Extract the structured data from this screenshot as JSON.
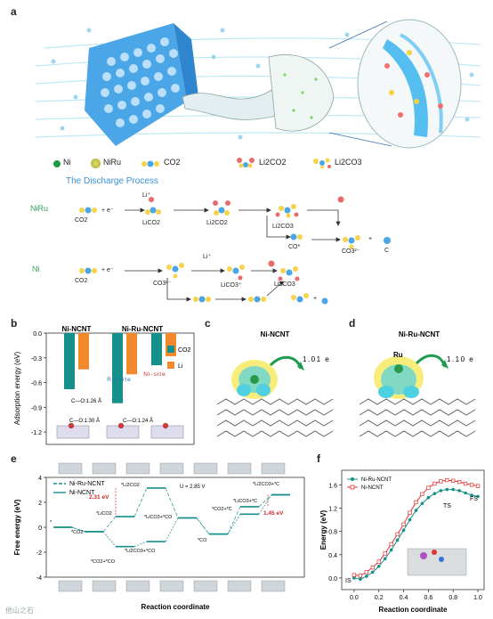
{
  "panel_a": {
    "letter": "a",
    "legend": [
      {
        "label": "Ni",
        "icon": "green-sphere-icon"
      },
      {
        "label": "NiRu",
        "icon": "yellow-cluster-icon"
      },
      {
        "label": "CO2",
        "icon": "co2-molecule-icon"
      },
      {
        "label": "Li2CO2",
        "icon": "li2co2-molecule-icon"
      },
      {
        "label": "Li2CO3",
        "icon": "li2co3-molecule-icon"
      }
    ],
    "process_title": "The Discharge Process",
    "niru": {
      "label": "NiRu",
      "co2": "CO2",
      "plus_e": "+ e⁻",
      "li_plus": "Li⁺",
      "lico2": "LiCO2",
      "li2co2": "Li2CO2",
      "li2co3": "Li2CO3",
      "co_star": "CO*",
      "co3": "CO3²⁻",
      "plus": "+",
      "c": "C"
    },
    "ni": {
      "label": "Ni",
      "co2": "CO2",
      "plus_e": "+ e⁻",
      "li_plus": "Li⁺",
      "co3": "CO3²⁻",
      "lico3": "LiCO3⁺",
      "li2co3": "Li2CO3",
      "plus": "+"
    }
  },
  "panel_b": {
    "letter": "b",
    "ylabel": "Adsorption energy (eV)",
    "groups": [
      "Ni-NCNT",
      "Ni-Ru-NCNT"
    ],
    "site_labels": [
      "Ru-site",
      "Ni-site"
    ],
    "bond_labels": [
      "C—O:1.26 Å",
      "C—O:1.30 Å",
      "C—O:1.24 Å"
    ],
    "colors": {
      "co2": "#16908a",
      "li": "#f08a2c"
    }
  },
  "panel_c": {
    "letter": "c",
    "title": "Ni-NCNT",
    "charge": "1.01 e"
  },
  "panel_d": {
    "letter": "d",
    "title": "Ni-Ru-NCNT",
    "site": "Ru",
    "charge": "1.10 e"
  },
  "panel_e": {
    "letter": "e",
    "annotations": {
      "u": "U = 2.85 V",
      "barrier1": "2.31 eV",
      "barrier2": "1.45 eV"
    },
    "state_labels": [
      "*",
      "*CO2",
      "*LiCO2",
      "*Li2CO2",
      "*CO2+*CO",
      "*Li2CO3+*CO",
      "*LiCO3+*CO",
      "*CO",
      "*CO2+*C",
      "*LiCO3+*C",
      "*Li2CO3+*C"
    ]
  },
  "panel_f": {
    "letter": "f",
    "annotations": {
      "is": "IS",
      "ts": "TS",
      "fs": "FS"
    }
  },
  "watermark": "他山之石",
  "chart_data": [
    {
      "type": "bar",
      "panel": "b",
      "categories": [
        "Ni-NCNT",
        "Ni-Ru-NCNT (Ru-site)",
        "Ni-Ru-NCNT (Ni-site)"
      ],
      "series": [
        {
          "name": "CO2",
          "values": [
            -0.68,
            -0.85,
            -0.39
          ]
        },
        {
          "name": "Li",
          "values": [
            -0.44,
            -0.5,
            -0.28
          ]
        }
      ],
      "xlabel": "",
      "ylabel": "Adsorption energy (eV)",
      "ylim": [
        -1.35,
        0
      ],
      "yticks": [
        0.0,
        -0.3,
        -0.6,
        -0.9,
        -1.2
      ],
      "ytick_labels": [
        "0.0",
        "-0.3",
        "-0.6",
        "-0.9",
        "-1.2"
      ],
      "legend_position": "right"
    },
    {
      "type": "line",
      "panel": "e",
      "x": [
        0,
        1,
        2,
        3,
        4,
        5,
        6,
        7
      ],
      "series": [
        {
          "name": "Ni-Ru-NCNT",
          "color": "#16908a",
          "values": [
            0.0,
            -0.35,
            0.85,
            3.15,
            0.75,
            -0.55,
            1.65,
            2.6
          ]
        },
        {
          "name": "Ni-NCNT",
          "color": "#16908a",
          "values": [
            0.0,
            -0.35,
            -1.55,
            -1.15,
            0.75,
            -0.55,
            1.05,
            2.6
          ]
        }
      ],
      "xlabel": "Reaction coordinate",
      "ylabel": "Free energy (eV)",
      "ylim": [
        -4,
        4
      ],
      "yticks": [
        -4,
        -2,
        0,
        2,
        4
      ],
      "legend_position": "top-left"
    },
    {
      "type": "line",
      "panel": "f",
      "x": [
        0.0,
        0.05,
        0.1,
        0.15,
        0.2,
        0.25,
        0.3,
        0.35,
        0.4,
        0.45,
        0.5,
        0.55,
        0.6,
        0.65,
        0.7,
        0.75,
        0.8,
        0.85,
        0.9,
        0.95,
        1.0
      ],
      "series": [
        {
          "name": "Ni-Ru-NCNT",
          "color": "#16908a",
          "values": [
            0.0,
            -0.02,
            0.03,
            0.1,
            0.2,
            0.33,
            0.48,
            0.65,
            0.82,
            1.0,
            1.16,
            1.28,
            1.38,
            1.45,
            1.5,
            1.52,
            1.52,
            1.5,
            1.46,
            1.42,
            1.4
          ]
        },
        {
          "name": "Ni-NCNT",
          "color": "#e03030",
          "values": [
            0.05,
            0.04,
            0.1,
            0.18,
            0.28,
            0.42,
            0.58,
            0.75,
            0.92,
            1.12,
            1.3,
            1.44,
            1.55,
            1.62,
            1.66,
            1.68,
            1.67,
            1.65,
            1.62,
            1.6,
            1.58
          ]
        }
      ],
      "xlabel": "Reaction coordinate",
      "ylabel": "Energy (eV)",
      "xlim": [
        -0.1,
        1.05
      ],
      "ylim": [
        -0.2,
        1.85
      ],
      "xticks": [
        0.0,
        0.2,
        0.4,
        0.6,
        0.8,
        1.0
      ],
      "xtick_labels": [
        "0.0",
        "0.2",
        "0.4",
        "0.6",
        "0.8",
        "1.0"
      ],
      "yticks": [
        0.0,
        0.4,
        0.8,
        1.2,
        1.6
      ],
      "ytick_labels": [
        "0.0",
        "0.4",
        "0.8",
        "1.2",
        "1.6"
      ],
      "legend_position": "top-left"
    }
  ]
}
